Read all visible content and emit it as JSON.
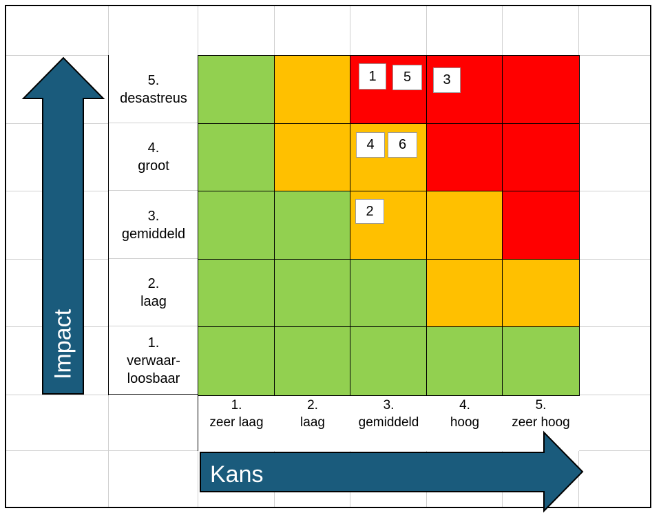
{
  "axes": {
    "y_title": "Impact",
    "x_title": "Kans"
  },
  "impact_levels": [
    "5.\ndesastreus",
    "4.\ngroot",
    "3.\ngemiddeld",
    "2.\nlaag",
    "1.\nverwaar-\nloosbaar"
  ],
  "kans_levels": [
    "1.\nzeer laag",
    "2.\nlaag",
    "3.\ngemiddeld",
    "4.\nhoog",
    "5.\nzeer hoog"
  ],
  "colors": {
    "green": "#92d050",
    "orange": "#ffc000",
    "red": "#ff0000",
    "arrow": "#1a5b7c"
  },
  "matrix_rows_top_to_bottom": [
    [
      "green",
      "orange",
      "red",
      "red",
      "red"
    ],
    [
      "green",
      "orange",
      "orange",
      "red",
      "red"
    ],
    [
      "green",
      "green",
      "orange",
      "orange",
      "red"
    ],
    [
      "green",
      "green",
      "green",
      "orange",
      "orange"
    ],
    [
      "green",
      "green",
      "green",
      "green",
      "green"
    ]
  ],
  "risks": [
    {
      "label": "1",
      "impact": 5,
      "kans": 3
    },
    {
      "label": "5",
      "impact": 5,
      "kans": 3
    },
    {
      "label": "3",
      "impact": 5,
      "kans": 4
    },
    {
      "label": "4",
      "impact": 4,
      "kans": 3
    },
    {
      "label": "6",
      "impact": 4,
      "kans": 3
    },
    {
      "label": "2",
      "impact": 3,
      "kans": 3
    }
  ]
}
